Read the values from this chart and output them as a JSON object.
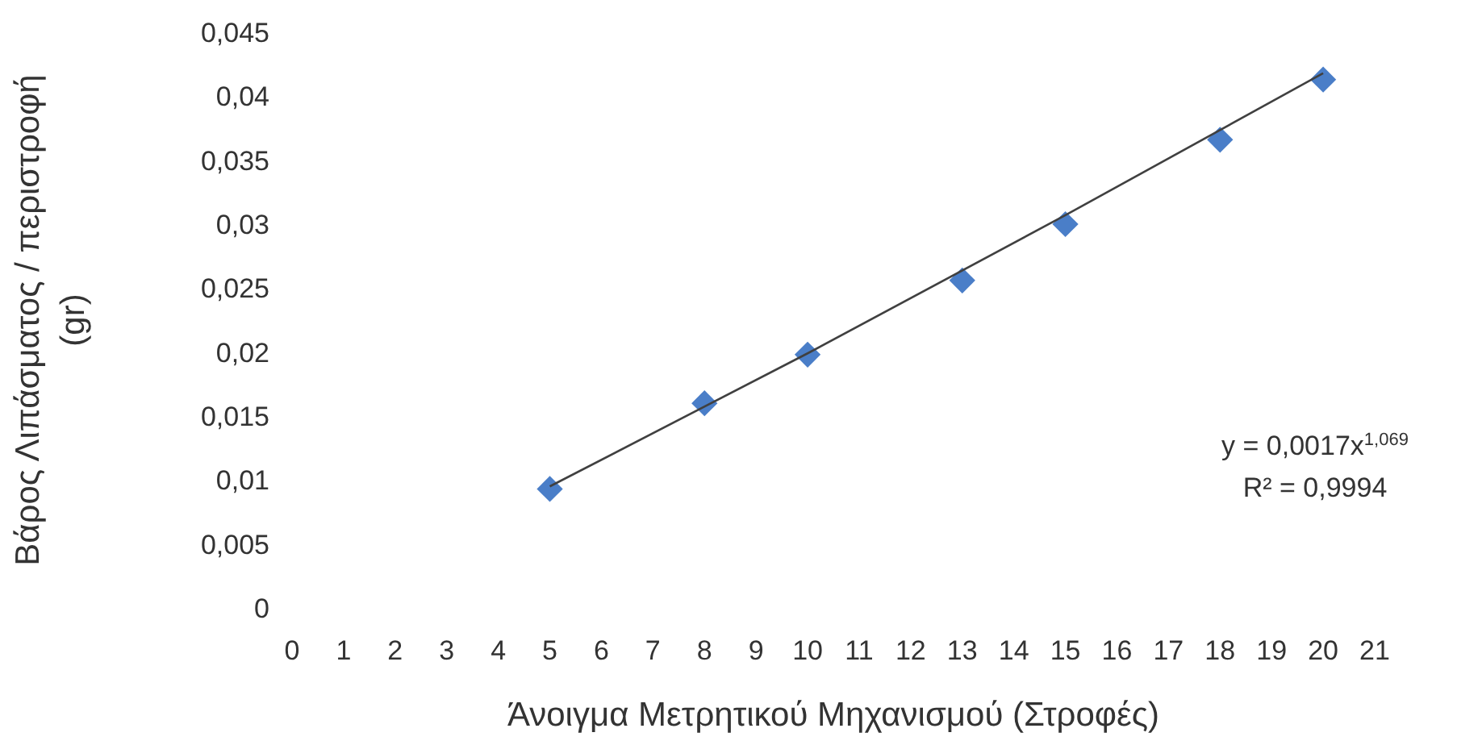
{
  "chart_data": {
    "type": "scatter",
    "xlabel": "Άνοιγμα Μετρητικού Μηχανισμού (Στροφές)",
    "ylabel": "Βάρος Λιπάσματος / περιστροφή (gr)",
    "xlim": [
      0,
      21
    ],
    "xticks": [
      0,
      1,
      2,
      3,
      4,
      5,
      6,
      7,
      8,
      9,
      10,
      11,
      12,
      13,
      14,
      15,
      16,
      17,
      18,
      19,
      20,
      21
    ],
    "ylim": [
      0,
      0.045
    ],
    "yticks": [
      0,
      {
        "value": 0.005,
        "label": "0,005"
      },
      {
        "value": 0.01,
        "label": "0,01"
      },
      {
        "value": 0.015,
        "label": "0,015"
      },
      {
        "value": 0.02,
        "label": "0,02"
      },
      {
        "value": 0.025,
        "label": "0,025"
      },
      {
        "value": 0.03,
        "label": "0,03"
      },
      {
        "value": 0.035,
        "label": "0,035"
      },
      {
        "value": 0.04,
        "label": "0,04"
      },
      {
        "value": 0.045,
        "label": "0,045"
      }
    ],
    "grid": false,
    "series": [
      {
        "marker": "diamond",
        "color": "#4a7ec8",
        "x": [
          5,
          8,
          10,
          13,
          15,
          18,
          20
        ],
        "values": [
          0.0093,
          0.016,
          0.0198,
          0.0256,
          0.03,
          0.0366,
          0.0413
        ]
      },
      {
        "type": "line",
        "color": "#404040",
        "x": [
          5,
          10,
          15,
          20
        ],
        "values": [
          0.0095,
          0.0199,
          0.0307,
          0.0418
        ]
      }
    ],
    "annotations": [
      "y = 0,0017x$^{1,069}$",
      "R² = 0,9994"
    ]
  }
}
